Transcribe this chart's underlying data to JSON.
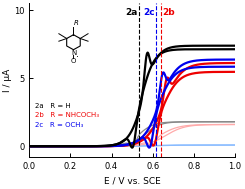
{
  "title": "",
  "xlabel": "E / V vs. SCE",
  "ylabel": "I / μA",
  "xlim": [
    0.0,
    1.0
  ],
  "ylim": [
    -0.8,
    10.5
  ],
  "yticks": [
    0,
    5,
    10
  ],
  "xticks": [
    0.0,
    0.2,
    0.4,
    0.6,
    0.8,
    1.0
  ],
  "vline_2a": 0.535,
  "vline_2c": 0.618,
  "vline_2b": 0.642,
  "label_2a": "2a",
  "label_2b": "2b",
  "label_2c": "2c",
  "color_2a": "#000000",
  "color_2b": "#ee0000",
  "color_2c": "#0000ee",
  "color_2a_light": "#888888",
  "color_2b_light": "#ffaaaa",
  "color_2c_light": "#88bbff",
  "background": "#ffffff",
  "legend_2a": "2a   R = H",
  "legend_2b": "2b   R = NHCOCH₃",
  "legend_2c": "2c   R = OCH₃"
}
